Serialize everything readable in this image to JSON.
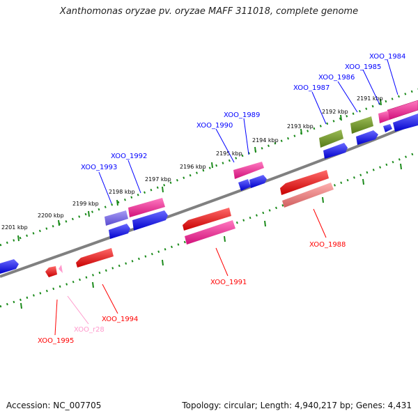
{
  "title": "Xanthomonas oryzae pv. oryzae MAFF 311018, complete genome",
  "footer": {
    "accession": "Accession: NC_007705",
    "summary": "Topology: circular; Length: 4,940,217 bp; Genes: 4,431"
  },
  "ticks": [
    "2191 kbp",
    "2192 kbp",
    "2193 kbp",
    "2194 kbp",
    "2195 kbp",
    "2196 kbp",
    "2197 kbp",
    "2198 kbp",
    "2199 kbp",
    "2200 kbp",
    "2201 kbp"
  ],
  "genes": [
    {
      "label": "XOO_1984",
      "color": "#0000ff"
    },
    {
      "label": "XOO_1985",
      "color": "#0000ff"
    },
    {
      "label": "XOO_1986",
      "color": "#0000ff"
    },
    {
      "label": "XOO_1987",
      "color": "#0000ff"
    },
    {
      "label": "XOO_1989",
      "color": "#0000ff"
    },
    {
      "label": "XOO_1990",
      "color": "#0000ff"
    },
    {
      "label": "XOO_1992",
      "color": "#0000ff"
    },
    {
      "label": "XOO_1993",
      "color": "#0000ff"
    },
    {
      "label": "XOO_1988",
      "color": "#ff0000"
    },
    {
      "label": "XOO_1991",
      "color": "#ff0000"
    },
    {
      "label": "XOO_1994",
      "color": "#ff0000"
    },
    {
      "label": "XOO_1995",
      "color": "#ff0000"
    },
    {
      "label": "XOO_r28",
      "color": "#ff99cc"
    }
  ],
  "colors": {
    "backbone": "#808080",
    "forward_blue": "#0000ff",
    "forward_magenta": "#ff1493",
    "forward_olive": "#6b8e23",
    "forward_purple": "#7b68ee",
    "reverse_red": "#ff0000",
    "reverse_pink": "#ff1493",
    "reverse_salmon": "#f08080",
    "rna_pink": "#ff99cc",
    "ticks": "#1a8a1a"
  }
}
